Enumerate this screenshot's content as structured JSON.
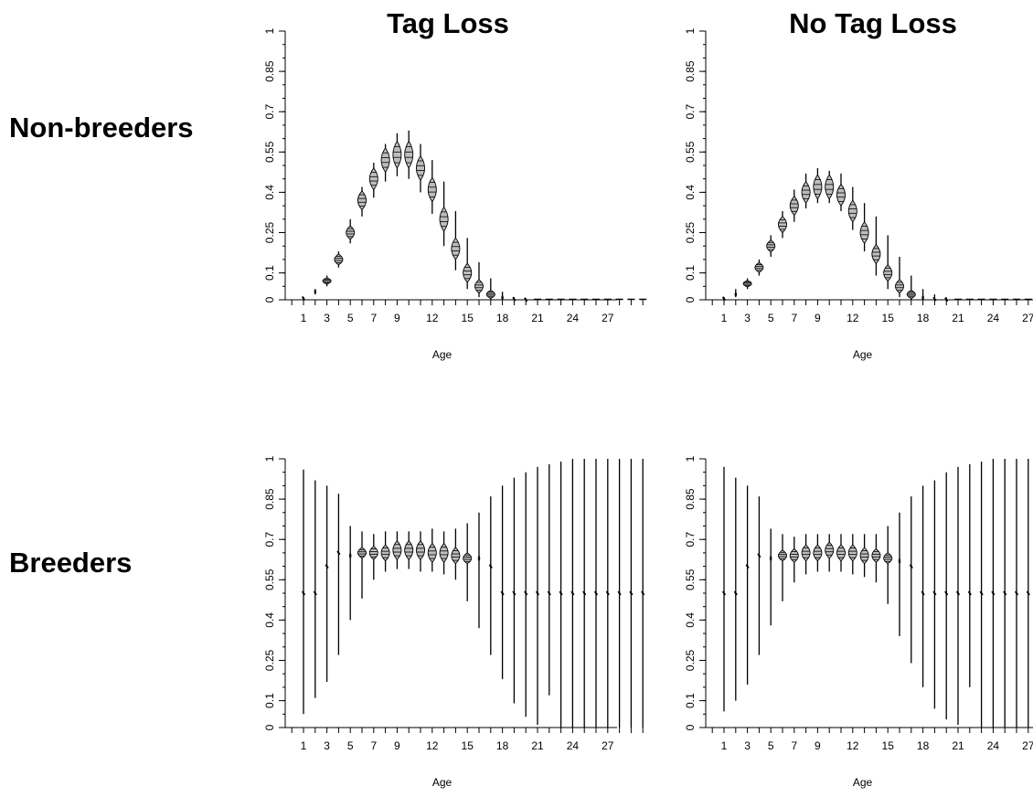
{
  "column_titles": [
    "Tag Loss",
    "No Tag Loss"
  ],
  "row_labels": [
    "Non-breeders",
    "Breeders"
  ],
  "chart_data": [
    {
      "type": "violin",
      "row": "Non-breeders",
      "column": "Tag Loss",
      "xlabel": "Age",
      "ylabel": "",
      "ylim": [
        0,
        1
      ],
      "yticks": [
        "0",
        "0.1",
        "0.25",
        "0.4",
        "0.55",
        "0.7",
        "0.85",
        "1"
      ],
      "xticks": [
        "1",
        "3",
        "5",
        "7",
        "9",
        "12",
        "15",
        "18",
        "21",
        "24",
        "27"
      ],
      "ages": [
        1,
        2,
        3,
        4,
        5,
        6,
        7,
        8,
        9,
        10,
        11,
        12,
        13,
        14,
        15,
        16,
        17,
        18,
        19,
        20,
        21,
        22,
        23,
        24,
        25,
        26,
        27,
        28,
        29,
        30
      ],
      "median": [
        0.005,
        0.03,
        0.07,
        0.15,
        0.25,
        0.37,
        0.45,
        0.52,
        0.54,
        0.54,
        0.49,
        0.41,
        0.3,
        0.19,
        0.1,
        0.05,
        0.02,
        0.008,
        0.003,
        0.001,
        0,
        0,
        0,
        0,
        0,
        0,
        0,
        0,
        0,
        0
      ],
      "low": [
        0.0,
        0.02,
        0.05,
        0.12,
        0.21,
        0.31,
        0.38,
        0.44,
        0.46,
        0.45,
        0.4,
        0.32,
        0.2,
        0.11,
        0.04,
        0.01,
        0.0,
        0.0,
        0.0,
        0,
        0,
        0,
        0,
        0,
        0,
        0,
        0,
        0,
        0,
        0
      ],
      "high": [
        0.01,
        0.04,
        0.09,
        0.18,
        0.3,
        0.42,
        0.51,
        0.58,
        0.62,
        0.63,
        0.58,
        0.52,
        0.44,
        0.33,
        0.23,
        0.14,
        0.08,
        0.03,
        0.01,
        0.005,
        0,
        0,
        0,
        0,
        0,
        0,
        0,
        0,
        0,
        0
      ],
      "spread": [
        0.004,
        0.008,
        0.012,
        0.02,
        0.025,
        0.035,
        0.04,
        0.045,
        0.05,
        0.05,
        0.045,
        0.045,
        0.045,
        0.04,
        0.035,
        0.025,
        0.015,
        0.008,
        0.004,
        0.002,
        0,
        0,
        0,
        0,
        0,
        0,
        0,
        0,
        0,
        0
      ]
    },
    {
      "type": "violin",
      "row": "Non-breeders",
      "column": "No Tag Loss",
      "xlabel": "Age",
      "ylabel": "",
      "ylim": [
        0,
        1
      ],
      "yticks": [
        "0",
        "0.1",
        "0.25",
        "0.4",
        "0.55",
        "0.7",
        "0.85",
        "1"
      ],
      "xticks": [
        "1",
        "3",
        "5",
        "7",
        "9",
        "12",
        "15",
        "18",
        "21",
        "24",
        "27"
      ],
      "ages": [
        1,
        2,
        3,
        4,
        5,
        6,
        7,
        8,
        9,
        10,
        11,
        12,
        13,
        14,
        15,
        16,
        17,
        18,
        19,
        20,
        21,
        22,
        23,
        24,
        25,
        26,
        27,
        28,
        29,
        30
      ],
      "median": [
        0.004,
        0.02,
        0.06,
        0.12,
        0.2,
        0.28,
        0.35,
        0.4,
        0.42,
        0.42,
        0.39,
        0.33,
        0.25,
        0.17,
        0.1,
        0.05,
        0.02,
        0.008,
        0.003,
        0.001,
        0,
        0,
        0,
        0,
        0,
        0,
        0,
        0,
        0,
        0
      ],
      "low": [
        0.0,
        0.01,
        0.04,
        0.09,
        0.16,
        0.23,
        0.29,
        0.34,
        0.36,
        0.36,
        0.33,
        0.26,
        0.18,
        0.09,
        0.04,
        0.01,
        0.0,
        0.0,
        0.0,
        0,
        0,
        0,
        0,
        0,
        0,
        0,
        0,
        0,
        0,
        0
      ],
      "high": [
        0.01,
        0.04,
        0.08,
        0.15,
        0.24,
        0.33,
        0.41,
        0.47,
        0.49,
        0.48,
        0.47,
        0.42,
        0.36,
        0.31,
        0.24,
        0.16,
        0.09,
        0.04,
        0.02,
        0.01,
        0,
        0,
        0,
        0,
        0,
        0,
        0,
        0,
        0,
        0
      ],
      "spread": [
        0.004,
        0.008,
        0.012,
        0.018,
        0.022,
        0.03,
        0.035,
        0.04,
        0.045,
        0.045,
        0.04,
        0.04,
        0.04,
        0.035,
        0.03,
        0.025,
        0.015,
        0.008,
        0.004,
        0.002,
        0,
        0,
        0,
        0,
        0,
        0,
        0,
        0,
        0,
        0
      ]
    },
    {
      "type": "violin",
      "row": "Breeders",
      "column": "Tag Loss",
      "xlabel": "Age",
      "ylabel": "",
      "ylim": [
        0,
        1
      ],
      "yticks": [
        "0",
        "0.1",
        "0.25",
        "0.4",
        "0.55",
        "0.7",
        "0.85",
        "1"
      ],
      "xticks": [
        "1",
        "3",
        "5",
        "7",
        "9",
        "12",
        "15",
        "18",
        "21",
        "24",
        "27"
      ],
      "ages": [
        1,
        2,
        3,
        4,
        5,
        6,
        7,
        8,
        9,
        10,
        11,
        12,
        13,
        14,
        15,
        16,
        17,
        18,
        19,
        20,
        21,
        22,
        23,
        24,
        25,
        26,
        27,
        28,
        29,
        30
      ],
      "median": [
        0.5,
        0.5,
        0.6,
        0.65,
        0.64,
        0.65,
        0.65,
        0.65,
        0.66,
        0.66,
        0.66,
        0.65,
        0.65,
        0.64,
        0.63,
        0.63,
        0.6,
        0.5,
        0.5,
        0.5,
        0.5,
        0.5,
        0.5,
        0.5,
        0.5,
        0.5,
        0.5,
        0.5,
        0.5,
        0.5
      ],
      "low": [
        0.05,
        0.11,
        0.17,
        0.27,
        0.4,
        0.48,
        0.55,
        0.58,
        0.59,
        0.59,
        0.58,
        0.58,
        0.57,
        0.55,
        0.47,
        0.37,
        0.27,
        0.18,
        0.09,
        0.04,
        0.01,
        0.12,
        0.0,
        0.0,
        0.0,
        0.0,
        0.0,
        0.0,
        0.0,
        0.0
      ],
      "high": [
        0.96,
        0.92,
        0.9,
        0.87,
        0.75,
        0.73,
        0.72,
        0.73,
        0.73,
        0.73,
        0.73,
        0.74,
        0.73,
        0.74,
        0.76,
        0.8,
        0.86,
        0.9,
        0.93,
        0.95,
        0.97,
        0.98,
        0.99,
        1.0,
        1.0,
        1.0,
        1.0,
        1.0,
        1.0,
        1.0
      ],
      "spread": [
        0.002,
        0.002,
        0.002,
        0.002,
        0.01,
        0.02,
        0.025,
        0.03,
        0.035,
        0.035,
        0.035,
        0.035,
        0.035,
        0.03,
        0.02,
        0.01,
        0.002,
        0.002,
        0.002,
        0.002,
        0.002,
        0.002,
        0.002,
        0.002,
        0.002,
        0.004,
        0.004,
        0.004,
        0.004,
        0.004
      ]
    },
    {
      "type": "violin",
      "row": "Breeders",
      "column": "No Tag Loss",
      "xlabel": "Age",
      "ylabel": "",
      "ylim": [
        0,
        1
      ],
      "yticks": [
        "0",
        "0.1",
        "0.25",
        "0.4",
        "0.55",
        "0.7",
        "0.85",
        "1"
      ],
      "xticks": [
        "1",
        "3",
        "5",
        "7",
        "9",
        "12",
        "15",
        "18",
        "21",
        "24",
        "27"
      ],
      "ages": [
        1,
        2,
        3,
        4,
        5,
        6,
        7,
        8,
        9,
        10,
        11,
        12,
        13,
        14,
        15,
        16,
        17,
        18,
        19,
        20,
        21,
        22,
        23,
        24,
        25,
        26,
        27,
        28,
        29,
        30
      ],
      "median": [
        0.5,
        0.5,
        0.6,
        0.64,
        0.63,
        0.64,
        0.64,
        0.65,
        0.65,
        0.66,
        0.65,
        0.65,
        0.64,
        0.64,
        0.63,
        0.62,
        0.6,
        0.5,
        0.5,
        0.5,
        0.5,
        0.5,
        0.5,
        0.5,
        0.5,
        0.5,
        0.5,
        0.5,
        0.5,
        0.5
      ],
      "low": [
        0.06,
        0.1,
        0.16,
        0.27,
        0.38,
        0.47,
        0.54,
        0.57,
        0.58,
        0.58,
        0.58,
        0.57,
        0.56,
        0.54,
        0.46,
        0.34,
        0.24,
        0.15,
        0.07,
        0.03,
        0.01,
        0.15,
        0.0,
        0.0,
        0.0,
        0.0,
        0.0,
        0.0,
        0.0,
        0.0
      ],
      "high": [
        0.97,
        0.93,
        0.9,
        0.86,
        0.74,
        0.72,
        0.71,
        0.72,
        0.72,
        0.72,
        0.72,
        0.72,
        0.72,
        0.72,
        0.75,
        0.8,
        0.86,
        0.9,
        0.92,
        0.95,
        0.97,
        0.98,
        0.99,
        1.0,
        1.0,
        1.0,
        1.0,
        1.0,
        1.0,
        1.0
      ],
      "spread": [
        0.002,
        0.002,
        0.002,
        0.002,
        0.01,
        0.02,
        0.025,
        0.03,
        0.03,
        0.03,
        0.03,
        0.03,
        0.03,
        0.025,
        0.02,
        0.01,
        0.002,
        0.002,
        0.002,
        0.002,
        0.002,
        0.002,
        0.002,
        0.002,
        0.002,
        0.004,
        0.004,
        0.004,
        0.004,
        0.004
      ]
    }
  ]
}
